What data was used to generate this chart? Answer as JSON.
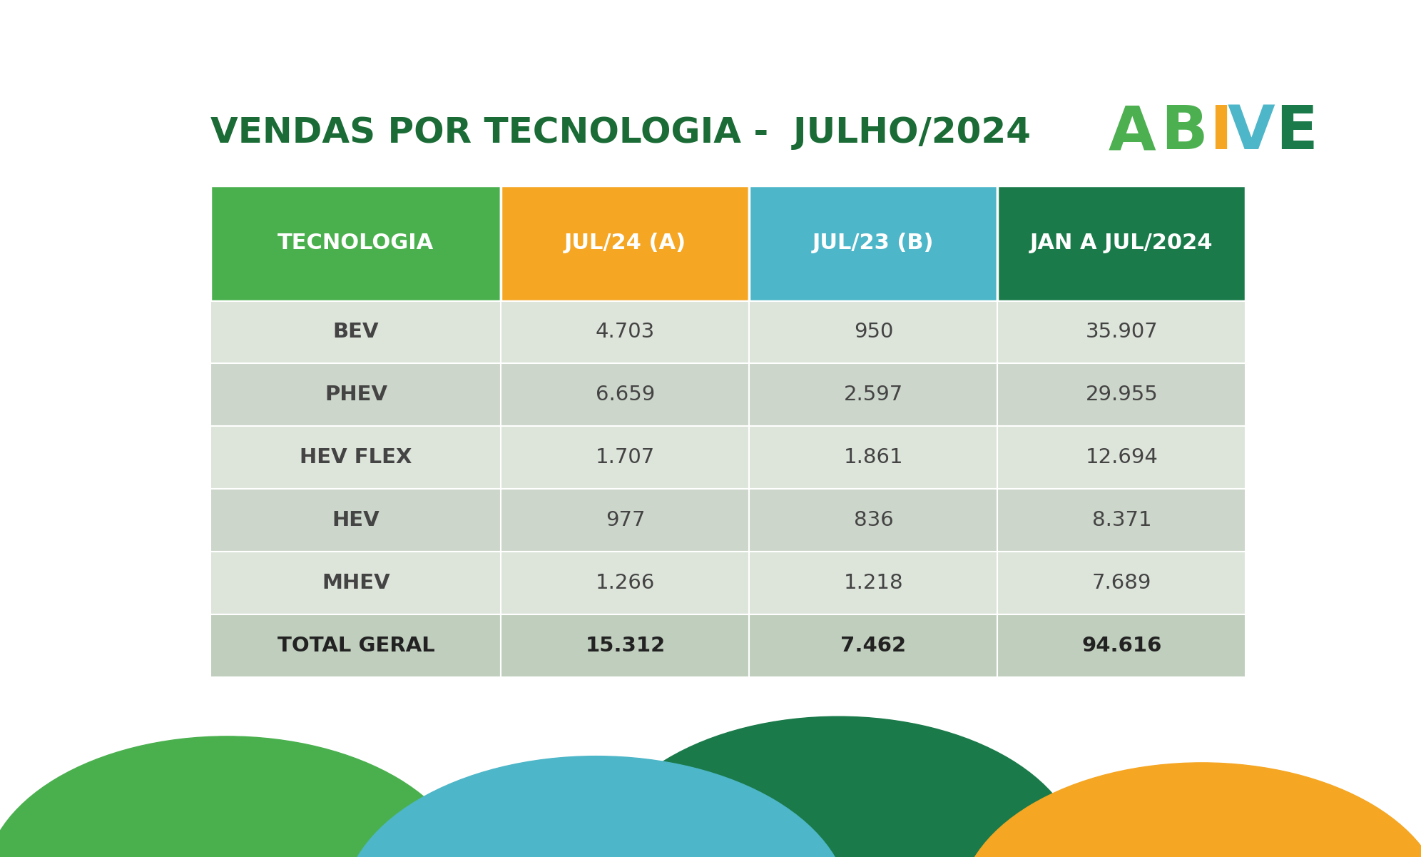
{
  "title": "VENDAS POR TECNOLOGIA -  JULHO/2024",
  "title_color": "#1a6b35",
  "background_color": "#ffffff",
  "header_row": [
    "TECNOLOGIA",
    "JUL/24 (A)",
    "JUL/23 (B)",
    "JAN A JUL/2024"
  ],
  "header_colors": [
    "#4ab04e",
    "#f5a623",
    "#4db6c8",
    "#1a7a4a"
  ],
  "header_text_color": "#ffffff",
  "rows": [
    [
      "BEV",
      "4.703",
      "950",
      "35.907"
    ],
    [
      "PHEV",
      "6.659",
      "2.597",
      "29.955"
    ],
    [
      "HEV FLEX",
      "1.707",
      "1.861",
      "12.694"
    ],
    [
      "HEV",
      "977",
      "836",
      "8.371"
    ],
    [
      "MHEV",
      "1.266",
      "1.218",
      "7.689"
    ]
  ],
  "total_row": [
    "TOTAL GERAL",
    "15.312",
    "7.462",
    "94.616"
  ],
  "row_colors_alt": [
    "#dde5db",
    "#ccd6ca"
  ],
  "total_row_color": "#c0cebe",
  "cell_text_color": "#444444",
  "cell_text_color_bold": "#222222",
  "decoration_green": "#4ab04e",
  "decoration_yellow": "#f5a623",
  "decoration_teal": "#4db6c8",
  "decoration_dkgreen": "#1a7a4a",
  "abive_green": "#4caf50",
  "abive_yellow": "#f5a623",
  "abive_teal": "#4db6c8",
  "abive_dkgreen": "#1a7a4a"
}
